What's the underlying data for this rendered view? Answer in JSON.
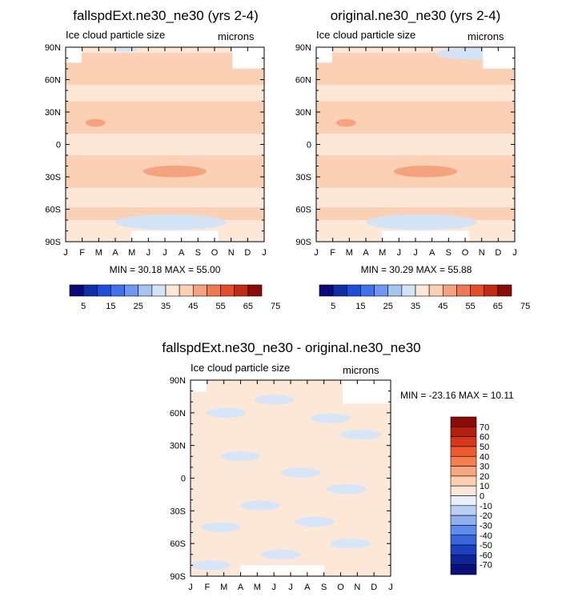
{
  "colors": {
    "frame": "#000000",
    "bg": "#ffffff",
    "missing": "#ffffff"
  },
  "chart_data": [
    {
      "type": "heatmap",
      "title": "fallspdExt.ne30_ne30 (yrs 2-4)",
      "subtitle": "Ice cloud particle size",
      "units": "microns",
      "xlabel": "",
      "ylabel": "",
      "x_tick_labels": [
        "J",
        "F",
        "M",
        "A",
        "M",
        "J",
        "J",
        "A",
        "S",
        "O",
        "N",
        "D",
        "J"
      ],
      "y_tick_labels": [
        "90N",
        "60N",
        "30N",
        "0",
        "30S",
        "60S",
        "90S"
      ],
      "ylim": [
        -90,
        90
      ],
      "stats_label": "MIN = 30.18 MAX = 55.00",
      "min": 30.18,
      "max": 55.0,
      "colorbar_labels": [
        "5",
        "15",
        "25",
        "35",
        "45",
        "55",
        "65",
        "75"
      ],
      "colorbar_colors": [
        "#0a0a7a",
        "#0f2fa8",
        "#1e4fd8",
        "#3f73ee",
        "#6f98f2",
        "#a6c4f2",
        "#d4e4f7",
        "#fde8d8",
        "#fbd0b4",
        "#f5a37f",
        "#ef7a50",
        "#e64e2a",
        "#c42b0f",
        "#8a0c06"
      ]
    },
    {
      "type": "heatmap",
      "title": "original.ne30_ne30 (yrs 2-4)",
      "subtitle": "Ice cloud particle size",
      "units": "microns",
      "xlabel": "",
      "ylabel": "",
      "x_tick_labels": [
        "J",
        "F",
        "M",
        "A",
        "M",
        "J",
        "J",
        "A",
        "S",
        "O",
        "N",
        "D",
        "J"
      ],
      "y_tick_labels": [
        "90N",
        "60N",
        "30N",
        "0",
        "30S",
        "60S",
        "90S"
      ],
      "ylim": [
        -90,
        90
      ],
      "stats_label": "MIN = 30.29 MAX = 55.88",
      "min": 30.29,
      "max": 55.88,
      "colorbar_labels": [
        "5",
        "15",
        "25",
        "35",
        "45",
        "55",
        "65",
        "75"
      ],
      "colorbar_colors": [
        "#0a0a7a",
        "#0f2fa8",
        "#1e4fd8",
        "#3f73ee",
        "#6f98f2",
        "#a6c4f2",
        "#d4e4f7",
        "#fde8d8",
        "#fbd0b4",
        "#f5a37f",
        "#ef7a50",
        "#e64e2a",
        "#c42b0f",
        "#8a0c06"
      ]
    },
    {
      "type": "heatmap",
      "title": "fallspdExt.ne30_ne30 - original.ne30_ne30",
      "subtitle": "Ice cloud particle size",
      "units": "microns",
      "xlabel": "",
      "ylabel": "",
      "x_tick_labels": [
        "J",
        "F",
        "M",
        "A",
        "M",
        "J",
        "J",
        "A",
        "S",
        "O",
        "N",
        "D",
        "J"
      ],
      "y_tick_labels": [
        "90N",
        "60N",
        "30N",
        "0",
        "30S",
        "60S",
        "90S"
      ],
      "ylim": [
        -90,
        90
      ],
      "stats_label": "MIN = -23.16 MAX = 10.11",
      "min": -23.16,
      "max": 10.11,
      "colorbar_labels": [
        "70",
        "60",
        "50",
        "40",
        "30",
        "20",
        "10",
        "0",
        "-10",
        "-20",
        "-30",
        "-40",
        "-50",
        "-60",
        "-70"
      ],
      "colorbar_colors": [
        "#8a0c06",
        "#b3200d",
        "#d6361a",
        "#ef5a2e",
        "#f57f4f",
        "#f8a67c",
        "#fbcfb0",
        "#fde8d8",
        "#e8f0fb",
        "#b9d0f4",
        "#8fb0f0",
        "#5f8cec",
        "#3766df",
        "#1c40c3",
        "#0d2596",
        "#08107a"
      ]
    }
  ]
}
